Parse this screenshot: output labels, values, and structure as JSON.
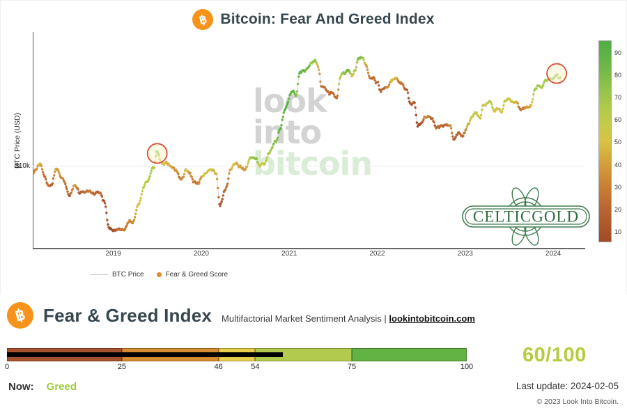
{
  "header": {
    "title": "Bitcoin: Fear And Greed Index",
    "bitcoin_icon_glyph": "฿"
  },
  "watermark": {
    "lines": [
      "look",
      "into",
      "bitcoin"
    ],
    "line_colors": [
      "#d3d3d3",
      "#d3d3d3",
      "#d9edd6"
    ]
  },
  "celticgold": {
    "text": "CELTICGOLD",
    "color": "#35724a"
  },
  "legend": {
    "btc_price": "BTC Price",
    "fg_score": "Fear & Greed Score",
    "line_color": "#c9c9c9",
    "dot_color": "#e08a2e"
  },
  "chart_data": {
    "type": "scatter-line",
    "title": "Bitcoin: Fear And Greed Index",
    "xlabel": "",
    "ylabel": "BTC Price (USD)",
    "x_ticks": [
      2019,
      2020,
      2021,
      2022,
      2023,
      2024
    ],
    "x_range": [
      2018.085,
      2024.356
    ],
    "y_scale": "log10",
    "y_range": [
      2600,
      92300
    ],
    "y_gridline": {
      "label": "$10k",
      "value": 10000
    },
    "line_color": "#cccccc",
    "gridline_color": "#ededed",
    "colorbar": {
      "ticks": [
        10,
        20,
        30,
        40,
        50,
        60,
        70,
        80,
        90
      ],
      "vmin": 6,
      "vmax": 95.5
    },
    "colormap": [
      [
        0,
        "#96431f"
      ],
      [
        10,
        "#a8512a"
      ],
      [
        20,
        "#ba6430"
      ],
      [
        30,
        "#c97c33"
      ],
      [
        40,
        "#d49b3a"
      ],
      [
        50,
        "#d8c244"
      ],
      [
        60,
        "#c3cc4b"
      ],
      [
        70,
        "#a2c84b"
      ],
      [
        80,
        "#7dbc48"
      ],
      [
        90,
        "#5bb245"
      ],
      [
        100,
        "#47ab43"
      ]
    ],
    "annotations": [
      {
        "t": 2019.5,
        "price": 12400,
        "radius": 14,
        "stroke": "#dd4f3b",
        "fill": "rgba(250,244,208,0.55)"
      },
      {
        "t": 2024.04,
        "price": 46500,
        "radius": 14,
        "stroke": "#dd4f3b",
        "fill": "rgba(250,244,208,0.55)"
      }
    ],
    "series_keypoints": {
      "columns": [
        "t",
        "price_usd",
        "fear_greed_score"
      ],
      "points": [
        [
          2018.09,
          8800,
          30
        ],
        [
          2018.17,
          10500,
          42
        ],
        [
          2018.21,
          8500,
          25
        ],
        [
          2018.29,
          7000,
          20
        ],
        [
          2018.35,
          9300,
          45
        ],
        [
          2018.42,
          8500,
          35
        ],
        [
          2018.5,
          6200,
          18
        ],
        [
          2018.56,
          7400,
          40
        ],
        [
          2018.63,
          6300,
          20
        ],
        [
          2018.71,
          6500,
          30
        ],
        [
          2018.79,
          6400,
          32
        ],
        [
          2018.85,
          6300,
          30
        ],
        [
          2018.89,
          5500,
          15
        ],
        [
          2018.96,
          3400,
          10
        ],
        [
          2019.04,
          3600,
          25
        ],
        [
          2019.12,
          3700,
          32
        ],
        [
          2019.21,
          3950,
          40
        ],
        [
          2019.29,
          5200,
          55
        ],
        [
          2019.37,
          7200,
          68
        ],
        [
          2019.46,
          8900,
          72
        ],
        [
          2019.5,
          12400,
          88
        ],
        [
          2019.54,
          10800,
          62
        ],
        [
          2019.58,
          10300,
          52
        ],
        [
          2019.62,
          10400,
          46
        ],
        [
          2019.67,
          10100,
          40
        ],
        [
          2019.71,
          9600,
          35
        ],
        [
          2019.75,
          8300,
          26
        ],
        [
          2019.79,
          8200,
          30
        ],
        [
          2019.83,
          9300,
          52
        ],
        [
          2019.87,
          8600,
          35
        ],
        [
          2019.92,
          7300,
          25
        ],
        [
          2019.96,
          7200,
          30
        ],
        [
          2020.04,
          8600,
          46
        ],
        [
          2020.12,
          9900,
          56
        ],
        [
          2020.17,
          8800,
          40
        ],
        [
          2020.21,
          5200,
          10
        ],
        [
          2020.29,
          7100,
          22
        ],
        [
          2020.33,
          8900,
          40
        ],
        [
          2020.37,
          9500,
          46
        ],
        [
          2020.42,
          9400,
          42
        ],
        [
          2020.5,
          9200,
          40
        ],
        [
          2020.56,
          11000,
          68
        ],
        [
          2020.62,
          11700,
          76
        ],
        [
          2020.67,
          10400,
          46
        ],
        [
          2020.71,
          10700,
          55
        ],
        [
          2020.79,
          13100,
          70
        ],
        [
          2020.85,
          15600,
          82
        ],
        [
          2020.89,
          18500,
          90
        ],
        [
          2020.96,
          26500,
          93
        ],
        [
          2021.04,
          34000,
          90
        ],
        [
          2021.08,
          32000,
          74
        ],
        [
          2021.12,
          46500,
          90
        ],
        [
          2021.17,
          50000,
          84
        ],
        [
          2021.21,
          55500,
          80
        ],
        [
          2021.25,
          58500,
          74
        ],
        [
          2021.29,
          62500,
          76
        ],
        [
          2021.33,
          54000,
          40
        ],
        [
          2021.37,
          37500,
          16
        ],
        [
          2021.42,
          35500,
          20
        ],
        [
          2021.46,
          33500,
          24
        ],
        [
          2021.5,
          34000,
          28
        ],
        [
          2021.54,
          31500,
          20
        ],
        [
          2021.58,
          42000,
          60
        ],
        [
          2021.62,
          46500,
          70
        ],
        [
          2021.67,
          48500,
          74
        ],
        [
          2021.71,
          43000,
          45
        ],
        [
          2021.75,
          48500,
          55
        ],
        [
          2021.79,
          61000,
          80
        ],
        [
          2021.83,
          64500,
          82
        ],
        [
          2021.87,
          57500,
          48
        ],
        [
          2021.92,
          48500,
          30
        ],
        [
          2021.96,
          47000,
          28
        ],
        [
          2022.0,
          42500,
          24
        ],
        [
          2022.04,
          36500,
          20
        ],
        [
          2022.08,
          38500,
          26
        ],
        [
          2022.12,
          39500,
          30
        ],
        [
          2022.17,
          42500,
          46
        ],
        [
          2022.21,
          45500,
          50
        ],
        [
          2022.25,
          41000,
          34
        ],
        [
          2022.29,
          39500,
          30
        ],
        [
          2022.33,
          36000,
          24
        ],
        [
          2022.37,
          29800,
          12
        ],
        [
          2022.42,
          30000,
          16
        ],
        [
          2022.46,
          20500,
          8
        ],
        [
          2022.5,
          19800,
          12
        ],
        [
          2022.54,
          23000,
          26
        ],
        [
          2022.58,
          23500,
          32
        ],
        [
          2022.62,
          21500,
          22
        ],
        [
          2022.67,
          19400,
          20
        ],
        [
          2022.71,
          19200,
          22
        ],
        [
          2022.75,
          19400,
          24
        ],
        [
          2022.79,
          20500,
          28
        ],
        [
          2022.83,
          20800,
          30
        ],
        [
          2022.87,
          16400,
          16
        ],
        [
          2022.92,
          16900,
          20
        ],
        [
          2022.96,
          16700,
          26
        ],
        [
          2023.04,
          19800,
          46
        ],
        [
          2023.08,
          23200,
          56
        ],
        [
          2023.12,
          23500,
          58
        ],
        [
          2023.17,
          22400,
          50
        ],
        [
          2023.21,
          27800,
          62
        ],
        [
          2023.25,
          28400,
          62
        ],
        [
          2023.29,
          29400,
          64
        ],
        [
          2023.33,
          27000,
          52
        ],
        [
          2023.37,
          27200,
          54
        ],
        [
          2023.42,
          26500,
          50
        ],
        [
          2023.46,
          30500,
          62
        ],
        [
          2023.5,
          30200,
          60
        ],
        [
          2023.54,
          29300,
          55
        ],
        [
          2023.58,
          29100,
          52
        ],
        [
          2023.62,
          26000,
          38
        ],
        [
          2023.67,
          26100,
          40
        ],
        [
          2023.71,
          26800,
          46
        ],
        [
          2023.75,
          27600,
          50
        ],
        [
          2023.79,
          34200,
          66
        ],
        [
          2023.83,
          36600,
          70
        ],
        [
          2023.87,
          37500,
          68
        ],
        [
          2023.92,
          42200,
          72
        ],
        [
          2023.96,
          43500,
          70
        ],
        [
          2024.0,
          44200,
          72
        ],
        [
          2024.04,
          46600,
          74
        ],
        [
          2024.07,
          42900,
          62
        ],
        [
          2024.09,
          43000,
          60
        ]
      ]
    }
  },
  "panel": {
    "title": "Fear & Greed Index",
    "subtitle_prefix": "Multifactorial Market Sentiment Analysis | ",
    "subtitle_link": "lookintobitcoin.com",
    "gauge": {
      "min": 0,
      "max": 100,
      "value": 60,
      "ticks": [
        0,
        25,
        46,
        54,
        75,
        100
      ],
      "segments": [
        {
          "from": 0,
          "to": 25,
          "color": "#a8512d"
        },
        {
          "from": 25,
          "to": 46,
          "color": "#d98b2f"
        },
        {
          "from": 46,
          "to": 54,
          "color": "#e8cf4c"
        },
        {
          "from": 54,
          "to": 75,
          "color": "#b2cb4e"
        },
        {
          "from": 75,
          "to": 100,
          "color": "#62b344"
        }
      ],
      "needle_color": "#000000"
    },
    "score_label": "60/100",
    "score_color": "#b7cb3d",
    "now_label": "Now:",
    "now_value": "Greed",
    "now_value_color": "#9ecb3a",
    "last_update": "Last update: 2024-02-05",
    "copyright": "© 2023 Look Into Bitcoin."
  }
}
